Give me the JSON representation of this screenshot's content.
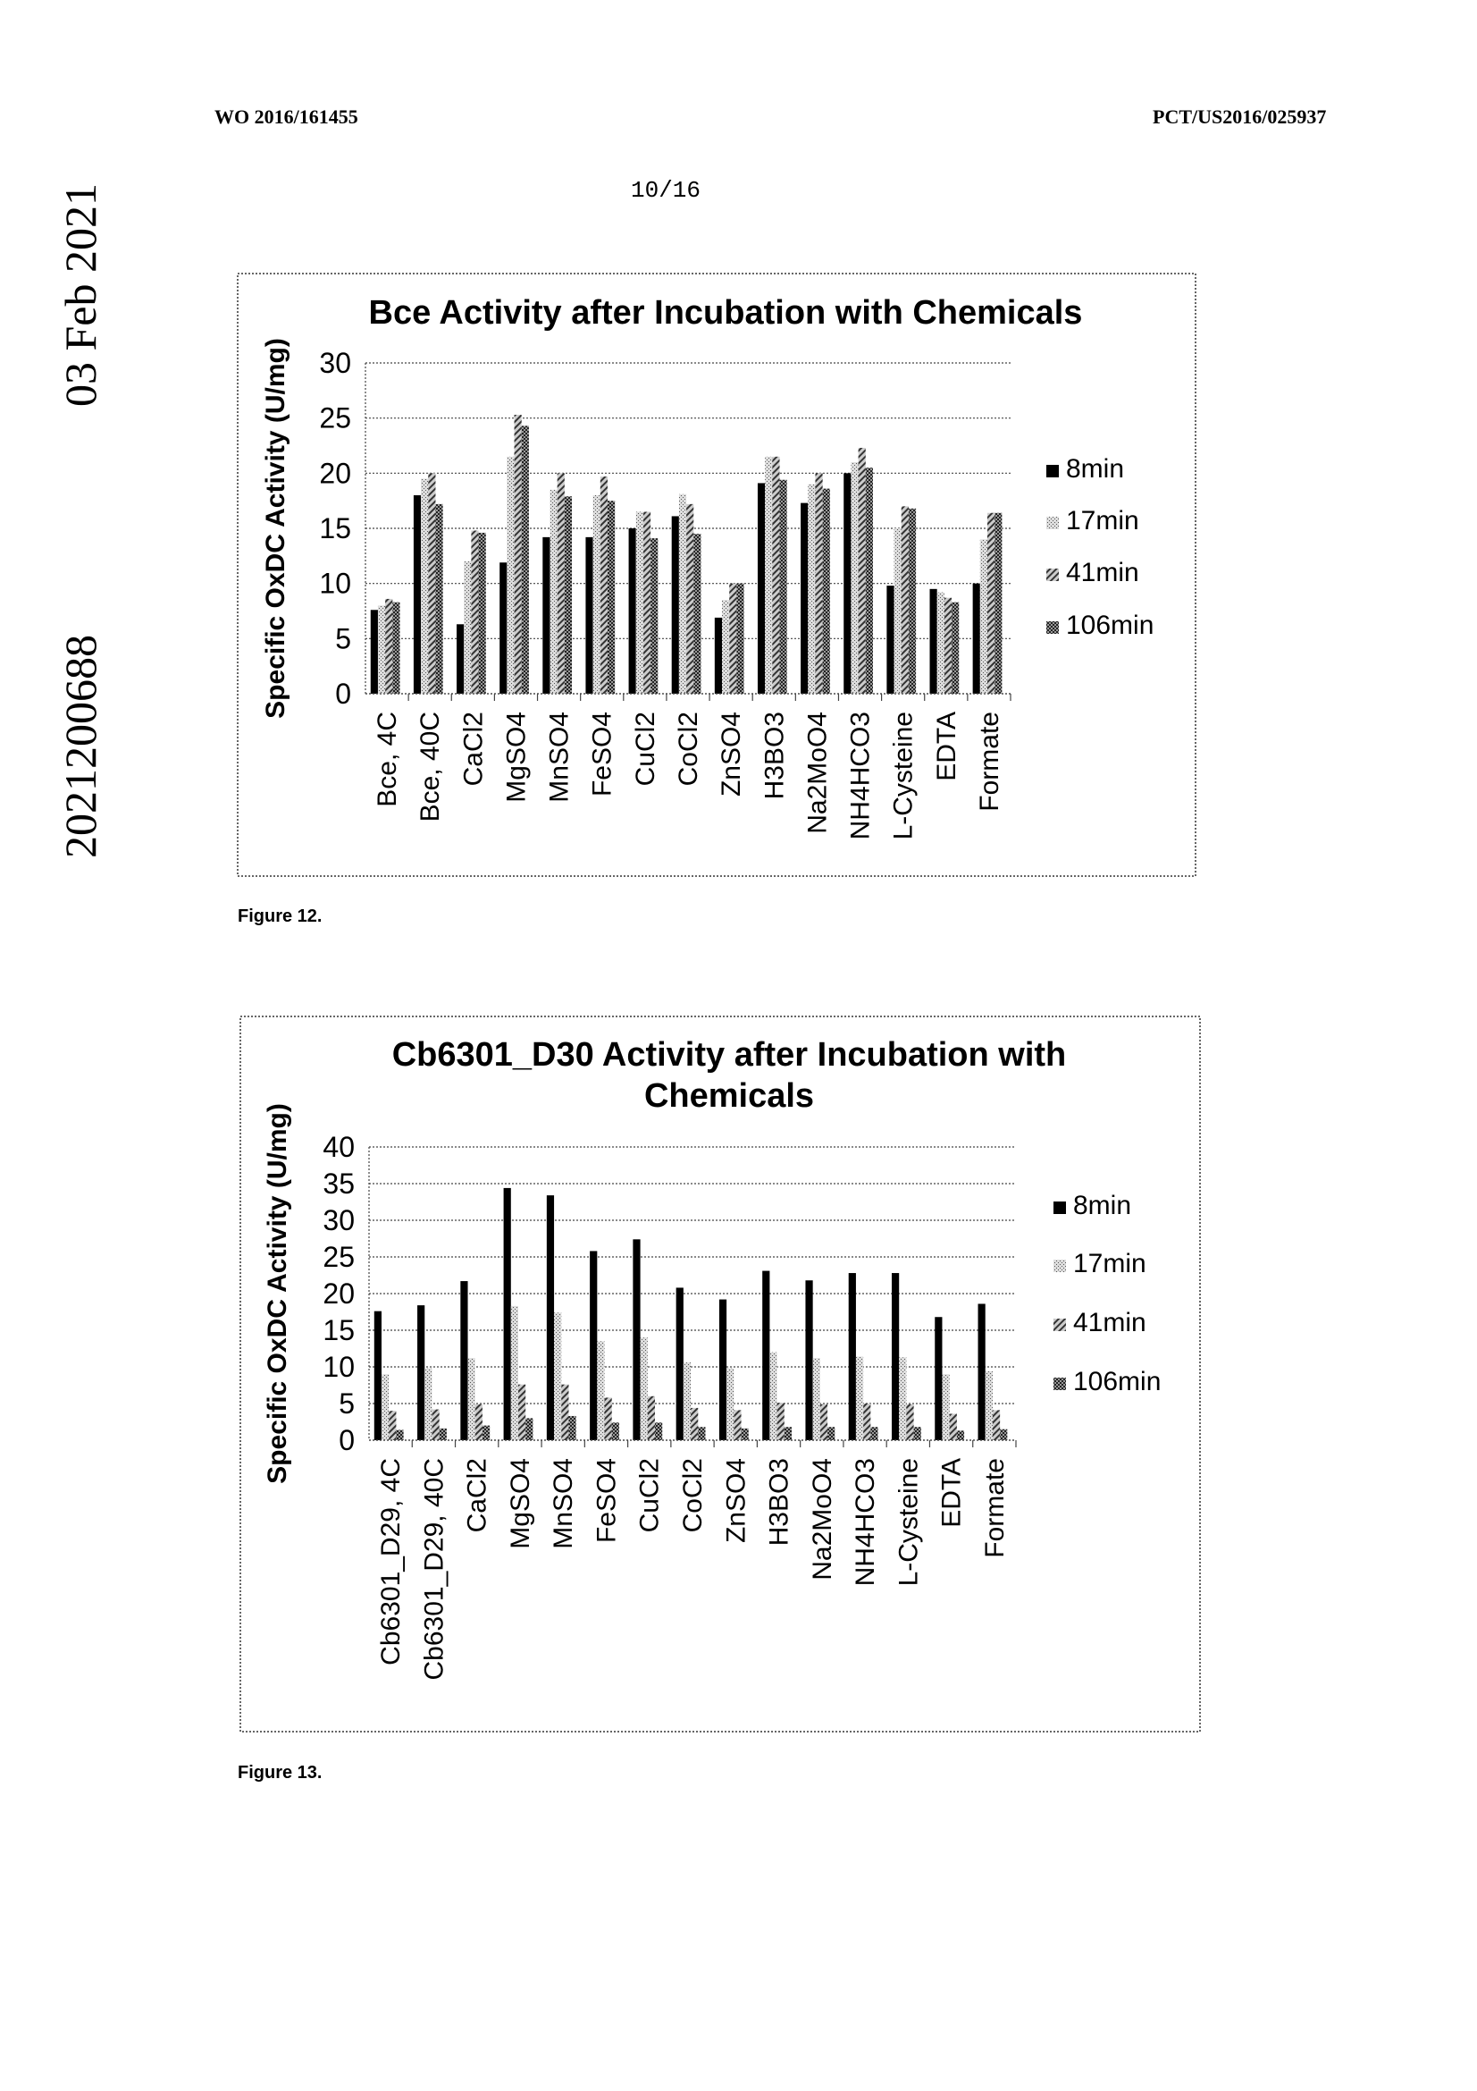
{
  "header": {
    "left": "WO 2016/161455",
    "right": "PCT/US2016/025937",
    "page": "10/16"
  },
  "side_text": {
    "number": "2021200688",
    "date": "03 Feb 2021"
  },
  "captions": {
    "fig12": "Figure 12.",
    "fig13": "Figure 13."
  },
  "chart_data": [
    {
      "type": "bar",
      "title": [
        "Bce Activity after Incubation with Chemicals"
      ],
      "ylabel": "Specific OxDC Activity (U/mg)",
      "xlabel": "",
      "ylim": [
        0,
        30
      ],
      "yticks": [
        0,
        5,
        10,
        15,
        20,
        25,
        30
      ],
      "grid": true,
      "legend": "right",
      "categories": [
        "Bce, 4C",
        "Bce, 40C",
        "CaCl2",
        "MgSO4",
        "MnSO4",
        "FeSO4",
        "CuCl2",
        "CoCl2",
        "ZnSO4",
        "H3BO3",
        "Na2MoO4",
        "NH4HCO3",
        "L-Cysteine",
        "EDTA",
        "Formate"
      ],
      "series": [
        {
          "name": "8min",
          "values": [
            7.6,
            18.0,
            6.3,
            11.9,
            14.2,
            14.2,
            15.0,
            16.1,
            6.9,
            19.1,
            17.3,
            20.0,
            9.8,
            9.5,
            10.0
          ]
        },
        {
          "name": "17min",
          "values": [
            8.0,
            19.5,
            12.0,
            21.5,
            18.5,
            18.0,
            16.5,
            18.1,
            8.5,
            21.5,
            19.0,
            21.0,
            15.0,
            9.2,
            14.0
          ]
        },
        {
          "name": "41min",
          "values": [
            8.6,
            20.0,
            14.8,
            25.3,
            20.0,
            19.7,
            16.5,
            17.2,
            10.0,
            21.5,
            20.0,
            22.3,
            17.0,
            8.7,
            16.4
          ]
        },
        {
          "name": "106min",
          "values": [
            8.3,
            17.2,
            14.6,
            24.3,
            17.9,
            17.5,
            14.1,
            14.5,
            10.0,
            19.4,
            18.6,
            20.5,
            16.8,
            8.3,
            16.4
          ]
        }
      ]
    },
    {
      "type": "bar",
      "title": [
        "Cb6301_D30 Activity after Incubation with",
        "Chemicals"
      ],
      "ylabel": "Specific OxDC Activity (U/mg)",
      "xlabel": "",
      "ylim": [
        0,
        40
      ],
      "yticks": [
        0,
        5,
        10,
        15,
        20,
        25,
        30,
        35,
        40
      ],
      "grid": true,
      "legend": "right",
      "categories": [
        "Cb6301_D29, 4C",
        "Cb6301_D29, 40C",
        "CaCl2",
        "MgSO4",
        "MnSO4",
        "FeSO4",
        "CuCl2",
        "CoCl2",
        "ZnSO4",
        "H3BO3",
        "Na2MoO4",
        "NH4HCO3",
        "L-Cysteine",
        "EDTA",
        "Formate"
      ],
      "series": [
        {
          "name": "8min",
          "values": [
            17.6,
            18.4,
            21.7,
            34.4,
            33.4,
            25.8,
            27.4,
            20.8,
            19.2,
            23.1,
            21.8,
            22.8,
            22.8,
            16.8,
            18.6
          ]
        },
        {
          "name": "17min",
          "values": [
            9.0,
            9.8,
            11.2,
            18.3,
            17.4,
            13.5,
            14.0,
            10.6,
            9.8,
            12.0,
            11.2,
            11.4,
            11.3,
            9.0,
            9.4
          ]
        },
        {
          "name": "41min",
          "values": [
            4.0,
            4.2,
            4.9,
            7.6,
            7.6,
            5.8,
            6.0,
            4.4,
            4.1,
            5.1,
            4.9,
            5.0,
            4.9,
            3.6,
            4.1
          ]
        },
        {
          "name": "106min",
          "values": [
            1.4,
            1.6,
            2.0,
            3.0,
            3.3,
            2.4,
            2.4,
            1.8,
            1.6,
            1.8,
            1.8,
            1.8,
            1.8,
            1.3,
            1.5
          ]
        }
      ]
    }
  ]
}
